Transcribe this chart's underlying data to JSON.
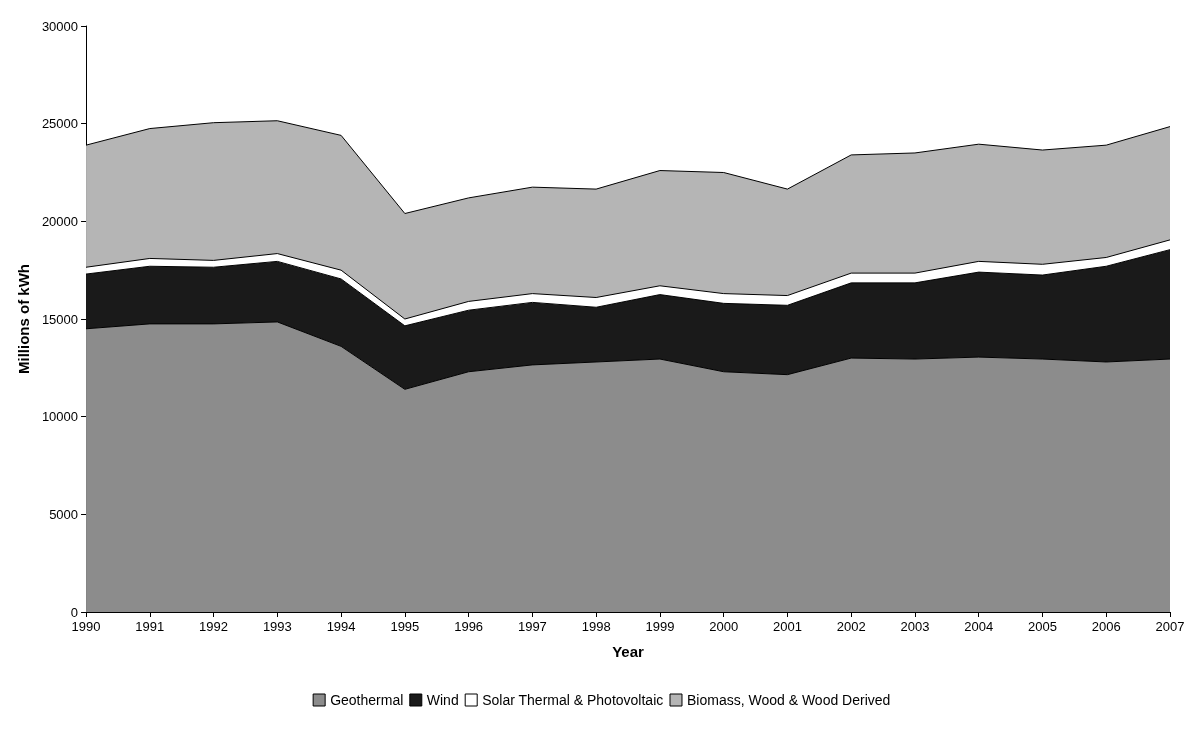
{
  "chart_data": {
    "type": "area",
    "stacked": true,
    "xlabel": "Year",
    "ylabel": "Millions of kWh",
    "categories": [
      "1990",
      "1991",
      "1992",
      "1993",
      "1994",
      "1995",
      "1996",
      "1997",
      "1998",
      "1999",
      "2000",
      "2001",
      "2002",
      "2003",
      "2004",
      "2005",
      "2006",
      "2007"
    ],
    "series": [
      {
        "name": "Geothermal",
        "color": "#8c8c8c",
        "values": [
          14500,
          14750,
          14750,
          14850,
          13600,
          11400,
          12300,
          12650,
          12800,
          12950,
          12300,
          12150,
          13000,
          12950,
          13050,
          12950,
          12800,
          12950
        ]
      },
      {
        "name": "Wind",
        "color": "#1a1a1a",
        "values": [
          2800,
          2950,
          2900,
          3100,
          3450,
          3250,
          3150,
          3200,
          2800,
          3300,
          3500,
          3550,
          3850,
          3900,
          4350,
          4300,
          4900,
          5600
        ]
      },
      {
        "name": "Solar Thermal & Photovoltaic",
        "color": "#ffffff",
        "values": [
          350,
          400,
          350,
          400,
          450,
          350,
          450,
          450,
          500,
          450,
          500,
          500,
          500,
          500,
          550,
          550,
          450,
          500
        ]
      },
      {
        "name": "Biomass, Wood & Wood Derived",
        "color": "#b5b5b5",
        "values": [
          6250,
          6650,
          7050,
          6800,
          6900,
          5400,
          5300,
          5450,
          5550,
          5900,
          6200,
          5450,
          6050,
          6150,
          6000,
          5850,
          5750,
          5800
        ]
      }
    ],
    "ylim": [
      0,
      30000
    ],
    "yticks": [
      0,
      5000,
      10000,
      15000,
      20000,
      25000,
      30000
    ],
    "grid": false,
    "legend": "bottom"
  }
}
